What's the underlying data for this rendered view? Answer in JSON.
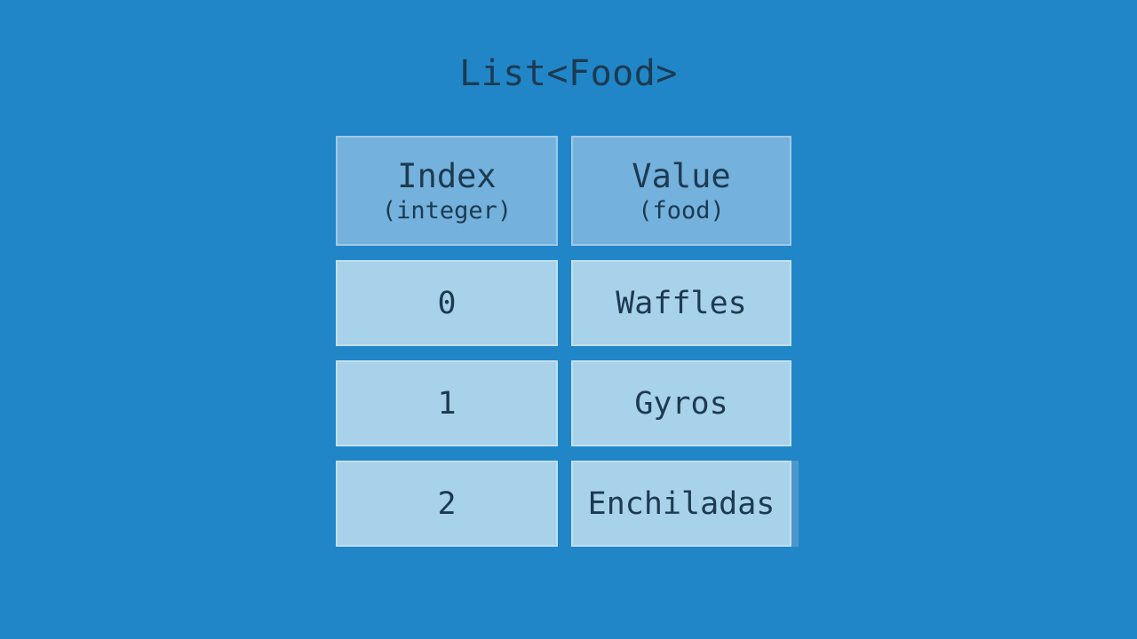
{
  "title": "List<Food>",
  "colors": {
    "background": "#2186c7",
    "header_fill": "#74b1dd",
    "cell_fill": "#a8d1ea",
    "text": "#1c3a50",
    "artifact_strip": "#4b98ce"
  },
  "table": {
    "columns": [
      {
        "name": "Index",
        "type_label": "(integer)"
      },
      {
        "name": "Value",
        "type_label": "(food)"
      }
    ],
    "rows": [
      {
        "index": "0",
        "value": "Waffles"
      },
      {
        "index": "1",
        "value": "Gyros"
      },
      {
        "index": "2",
        "value": "Enchiladas"
      }
    ]
  }
}
